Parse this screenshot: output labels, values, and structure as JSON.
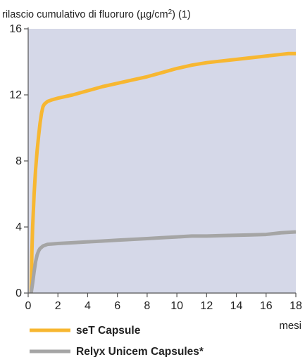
{
  "chart_data": {
    "type": "line",
    "title": "",
    "ylabel_prefix": "rilascio cumulativo di fluoruro (",
    "ylabel_unit_main": "µg/cm",
    "ylabel_unit_sup": "2",
    "ylabel_suffix": ") (1)",
    "xlabel": "mesi",
    "xlim": [
      0,
      18
    ],
    "ylim": [
      0,
      16
    ],
    "x_ticks": [
      0,
      2,
      4,
      6,
      8,
      10,
      12,
      14,
      16,
      18
    ],
    "y_ticks": [
      0,
      4,
      8,
      12,
      16
    ],
    "grid": false,
    "plot_background": "#d5d8e8",
    "legend_position": "bottom-left",
    "series": [
      {
        "name": "seT Capsule",
        "color": "#f7b731",
        "x": [
          0.2,
          0.25,
          0.3,
          0.4,
          0.5,
          0.6,
          0.7,
          0.8,
          0.9,
          1.0,
          1.1,
          1.3,
          1.6,
          2,
          3,
          4,
          5,
          6,
          7,
          8,
          9,
          10,
          11,
          12,
          13,
          14,
          15,
          16,
          17,
          17.5,
          18
        ],
        "y": [
          0,
          2.5,
          4.0,
          6.0,
          7.5,
          8.6,
          9.5,
          10.3,
          10.9,
          11.3,
          11.45,
          11.6,
          11.7,
          11.8,
          12.0,
          12.25,
          12.5,
          12.7,
          12.9,
          13.1,
          13.35,
          13.6,
          13.8,
          13.95,
          14.05,
          14.15,
          14.25,
          14.35,
          14.45,
          14.5,
          14.5
        ]
      },
      {
        "name": "Relyx Unicem Capsules*",
        "color": "#a5a5a5",
        "x": [
          0.2,
          0.3,
          0.4,
          0.5,
          0.6,
          0.7,
          0.8,
          1.0,
          1.3,
          2,
          3,
          4,
          5,
          6,
          7,
          8,
          9,
          10,
          11,
          12,
          13,
          14,
          15,
          16,
          17,
          18
        ],
        "y": [
          0,
          0.6,
          1.3,
          1.9,
          2.3,
          2.55,
          2.7,
          2.85,
          2.95,
          3.0,
          3.05,
          3.1,
          3.15,
          3.2,
          3.25,
          3.3,
          3.35,
          3.4,
          3.45,
          3.45,
          3.48,
          3.5,
          3.52,
          3.55,
          3.65,
          3.7
        ]
      }
    ]
  }
}
